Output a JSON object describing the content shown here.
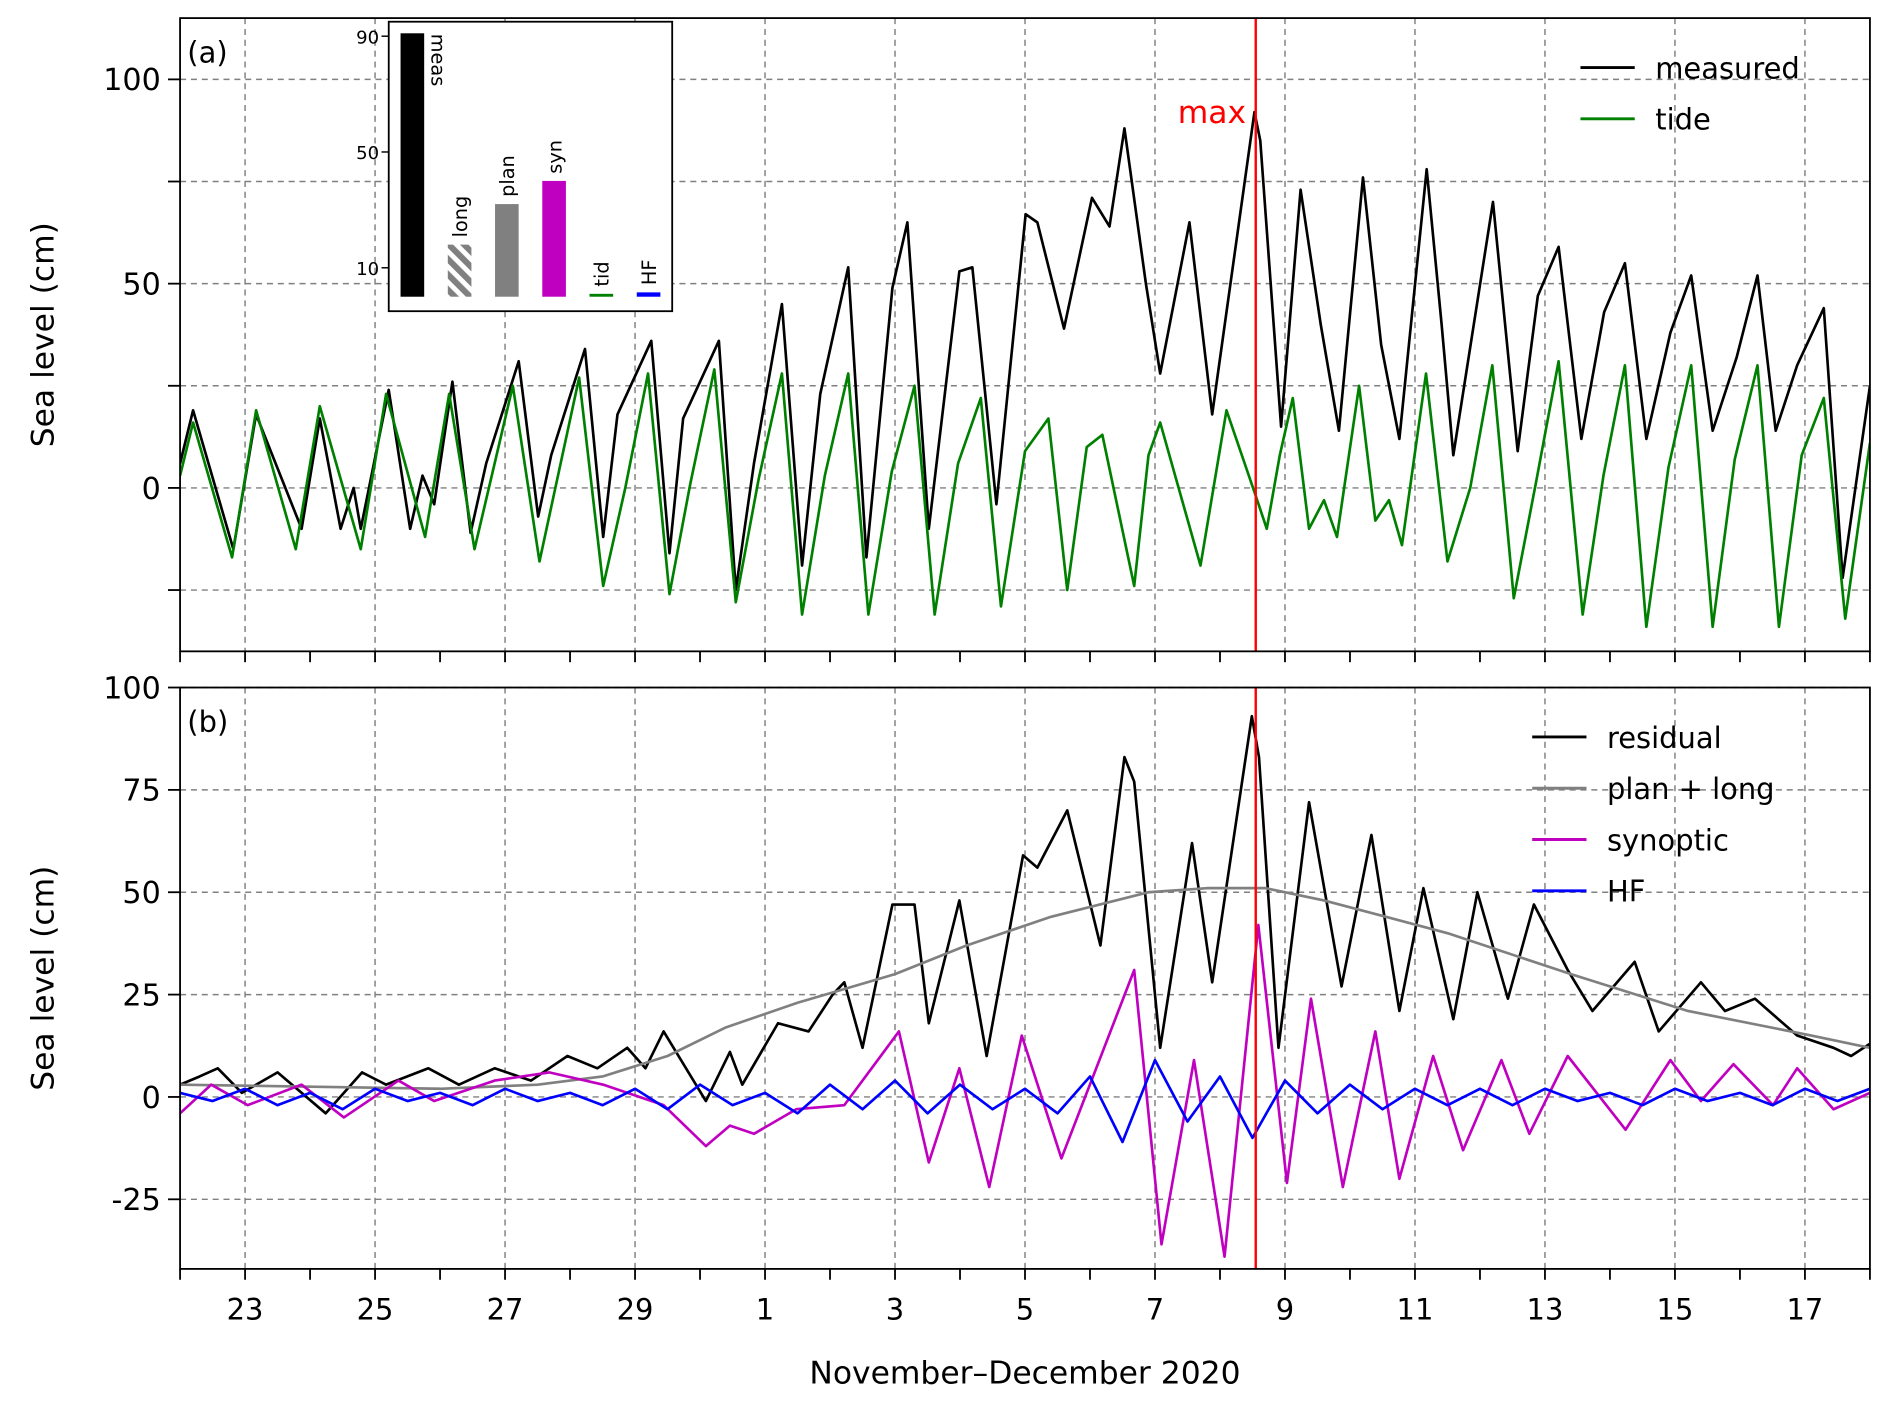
{
  "chart_data": [
    {
      "type": "line",
      "label": "(a)",
      "ylabel": "Sea level (cm)",
      "xlim": [
        0,
        26
      ],
      "xticks": [
        1,
        3,
        5,
        7,
        9,
        11,
        13,
        15,
        17,
        19,
        21,
        23,
        25
      ],
      "xminorticks": [
        0,
        2,
        4,
        6,
        8,
        10,
        12,
        14,
        16,
        18,
        20,
        22,
        24,
        26
      ],
      "ylim": [
        -40,
        115
      ],
      "yticks": [
        0,
        50,
        100
      ],
      "yminorticks": [
        -25,
        25,
        75
      ],
      "grid": true,
      "legend": "upper right",
      "vline_x": 16.55,
      "vline_color": "red",
      "annotation": "max",
      "series": [
        {
          "name": "measured",
          "color": "#000000",
          "x": [
            0.0,
            0.2,
            0.82,
            1.17,
            1.87,
            2.15,
            2.47,
            2.67,
            2.78,
            3.21,
            3.54,
            3.73,
            3.91,
            4.19,
            4.47,
            4.71,
            5.21,
            5.51,
            5.71,
            6.23,
            6.51,
            6.73,
            7.25,
            7.53,
            7.74,
            8.29,
            8.55,
            8.83,
            9.26,
            9.57,
            9.85,
            10.28,
            10.56,
            10.96,
            11.19,
            11.52,
            11.99,
            12.19,
            12.56,
            13.01,
            13.19,
            13.6,
            14.03,
            14.3,
            14.53,
            14.86,
            15.08,
            15.53,
            15.88,
            16.53,
            16.62,
            16.94,
            17.24,
            17.55,
            17.83,
            18.2,
            18.48,
            18.76,
            19.18,
            19.41,
            19.59,
            20.2,
            20.58,
            20.89,
            21.21,
            21.56,
            21.91,
            22.23,
            22.56,
            22.93,
            23.25,
            23.58,
            23.95,
            24.27,
            24.55,
            24.88,
            25.29,
            25.58,
            26.0
          ],
          "values": [
            6,
            19,
            -15,
            18,
            -10,
            17,
            -10,
            0,
            -10,
            24,
            -10,
            3,
            -4,
            26,
            -11,
            6,
            31,
            -7,
            8,
            34,
            -12,
            18,
            36,
            -16,
            17,
            36,
            -25,
            6,
            45,
            -19,
            23,
            54,
            -17,
            49,
            65,
            -10,
            53,
            54,
            -4,
            67,
            65,
            39,
            71,
            64,
            88,
            50,
            28,
            65,
            18,
            92,
            85,
            15,
            73,
            40,
            14,
            76,
            35,
            12,
            78,
            40,
            8,
            70,
            9,
            47,
            59,
            12,
            43,
            55,
            12,
            38,
            52,
            14,
            32,
            52,
            14,
            30,
            44,
            -22,
            25
          ]
        },
        {
          "name": "tide",
          "color": "#008000",
          "x": [
            0.0,
            0.2,
            0.8,
            1.17,
            1.78,
            2.15,
            2.78,
            3.17,
            3.77,
            4.14,
            4.53,
            5.12,
            5.53,
            6.14,
            6.51,
            6.85,
            7.2,
            7.53,
            7.85,
            8.22,
            8.55,
            8.9,
            9.26,
            9.57,
            9.92,
            10.28,
            10.59,
            10.95,
            11.3,
            11.61,
            11.97,
            12.32,
            12.63,
            13.0,
            13.36,
            13.65,
            13.95,
            14.19,
            14.68,
            14.9,
            15.08,
            15.7,
            16.1,
            16.53,
            16.72,
            16.92,
            17.12,
            17.37,
            17.6,
            17.8,
            18.14,
            18.39,
            18.6,
            18.8,
            19.17,
            19.5,
            19.85,
            20.19,
            20.52,
            20.87,
            21.21,
            21.58,
            21.9,
            22.23,
            22.56,
            22.9,
            23.25,
            23.58,
            23.92,
            24.27,
            24.6,
            24.95,
            25.29,
            25.62,
            26.0
          ],
          "values": [
            3,
            16,
            -17,
            19,
            -15,
            20,
            -15,
            23,
            -12,
            23,
            -15,
            25,
            -18,
            27,
            -24,
            0,
            28,
            -26,
            1,
            29,
            -28,
            2,
            28,
            -31,
            3,
            28,
            -31,
            4,
            25,
            -31,
            6,
            22,
            -29,
            9,
            17,
            -25,
            10,
            13,
            -24,
            8,
            16,
            -19,
            19,
            -1,
            -10,
            8,
            22,
            -10,
            -3,
            -12,
            25,
            -8,
            -3,
            -14,
            28,
            -18,
            0,
            30,
            -27,
            2,
            31,
            -31,
            3,
            30,
            -34,
            5,
            30,
            -34,
            7,
            30,
            -34,
            8,
            22,
            -32,
            11
          ]
        }
      ]
    },
    {
      "type": "bar",
      "categories": [
        "meas",
        "long",
        "plan",
        "syn",
        "tid",
        "HF"
      ],
      "values": [
        91,
        18,
        32,
        40,
        1,
        1.5
      ],
      "colors": [
        "#000000",
        "#808080",
        "#808080",
        "#c000c0",
        "#008000",
        "#0000ff"
      ],
      "hatched": [
        false,
        true,
        false,
        false,
        false,
        false
      ],
      "ylim": [
        -5,
        95
      ],
      "yticks": [
        10,
        50,
        90
      ]
    },
    {
      "type": "line",
      "label": "(b)",
      "ylabel": "Sea level (cm)",
      "xlabel": "November–December 2020",
      "xlim": [
        0,
        26
      ],
      "xticks": [
        {
          "value": 1,
          "label": "23"
        },
        {
          "value": 3,
          "label": "25"
        },
        {
          "value": 5,
          "label": "27"
        },
        {
          "value": 7,
          "label": "29"
        },
        {
          "value": 9,
          "label": "1"
        },
        {
          "value": 11,
          "label": "3"
        },
        {
          "value": 13,
          "label": "5"
        },
        {
          "value": 15,
          "label": "7"
        },
        {
          "value": 17,
          "label": "9"
        },
        {
          "value": 19,
          "label": "11"
        },
        {
          "value": 21,
          "label": "13"
        },
        {
          "value": 23,
          "label": "15"
        },
        {
          "value": 25,
          "label": "17"
        }
      ],
      "xminorticks": [
        0,
        2,
        4,
        6,
        8,
        10,
        12,
        14,
        16,
        18,
        20,
        22,
        24,
        26
      ],
      "ylim": [
        -42,
        100
      ],
      "yticks": [
        -25,
        0,
        25,
        50,
        75,
        100
      ],
      "grid": true,
      "legend": "upper right",
      "vline_x": 16.55,
      "vline_color": "red",
      "series": [
        {
          "name": "residual",
          "color": "#000000",
          "x": [
            0.0,
            0.3,
            0.58,
            0.95,
            1.5,
            2.24,
            2.8,
            3.17,
            3.82,
            4.29,
            4.84,
            5.4,
            5.96,
            6.42,
            6.88,
            7.16,
            7.44,
            8.09,
            8.46,
            8.65,
            9.2,
            9.67,
            10.04,
            10.22,
            10.5,
            10.96,
            11.3,
            11.52,
            11.99,
            12.41,
            12.97,
            13.19,
            13.65,
            14.16,
            14.53,
            14.68,
            15.08,
            15.57,
            15.88,
            16.49,
            16.6,
            16.9,
            17.37,
            17.87,
            18.33,
            18.76,
            19.13,
            19.59,
            19.96,
            20.43,
            20.83,
            21.35,
            21.73,
            22.38,
            22.75,
            23.4,
            23.77,
            24.23,
            24.88,
            25.44,
            25.71,
            26.0
          ],
          "values": [
            3,
            5,
            7,
            1,
            6,
            -4,
            6,
            3,
            7,
            3,
            7,
            4,
            10,
            7,
            12,
            7,
            16,
            -1,
            11,
            3,
            18,
            16,
            25,
            28,
            12,
            47,
            47,
            18,
            48,
            10,
            59,
            56,
            70,
            37,
            83,
            77,
            12,
            62,
            28,
            93,
            83,
            12,
            72,
            27,
            64,
            21,
            51,
            19,
            50,
            24,
            47,
            31,
            21,
            33,
            16,
            28,
            21,
            24,
            15,
            12,
            10,
            13
          ]
        },
        {
          "name": "plan + long",
          "color": "#808080",
          "x": [
            0,
            2,
            4,
            5.5,
            6.5,
            7.5,
            8.4,
            9.5,
            11,
            12.1,
            13.4,
            14.9,
            15.8,
            16.7,
            17.6,
            19.5,
            21.4,
            23.2,
            25.1,
            26
          ],
          "values": [
            3,
            2.5,
            2,
            3,
            5,
            10,
            17,
            23,
            30,
            37,
            44,
            50,
            51,
            51,
            48,
            40,
            30,
            21,
            15,
            12
          ]
        },
        {
          "name": "synoptic",
          "color": "#c000c0",
          "x": [
            0.0,
            0.48,
            1.04,
            1.87,
            2.52,
            3.36,
            3.91,
            4.84,
            5.68,
            6.51,
            7.44,
            8.09,
            8.46,
            8.83,
            9.48,
            10.22,
            11.06,
            11.52,
            11.99,
            12.45,
            12.95,
            13.56,
            14.68,
            15.1,
            15.6,
            16.07,
            16.59,
            17.03,
            17.4,
            17.89,
            18.39,
            18.76,
            19.28,
            19.74,
            20.33,
            20.76,
            21.35,
            22.24,
            22.93,
            23.4,
            23.9,
            24.51,
            24.88,
            25.44,
            26.0
          ],
          "values": [
            -4,
            3,
            -2,
            3,
            -5,
            4,
            -1,
            4,
            6,
            3,
            -2,
            -12,
            -7,
            -9,
            -3,
            -2,
            16,
            -16,
            7,
            -22,
            15,
            -15,
            31,
            -36,
            9,
            -39,
            42,
            -21,
            24,
            -22,
            16,
            -20,
            10,
            -13,
            9,
            -9,
            10,
            -8,
            9,
            -1,
            8,
            -2,
            7,
            -3,
            1
          ]
        },
        {
          "name": "HF",
          "color": "#0000ff",
          "x": [
            0,
            0.5,
            1,
            1.5,
            2,
            2.5,
            3,
            3.5,
            4,
            4.5,
            5,
            5.5,
            6,
            6.5,
            7,
            7.5,
            8,
            8.5,
            9,
            9.5,
            10,
            10.5,
            11,
            11.5,
            12,
            12.5,
            13,
            13.5,
            14,
            14.5,
            15,
            15.5,
            16,
            16.5,
            17,
            17.5,
            18,
            18.5,
            19,
            19.5,
            20,
            20.5,
            21,
            21.5,
            22,
            22.5,
            23,
            23.5,
            24,
            24.5,
            25,
            25.5,
            26
          ],
          "values": [
            1,
            -1,
            2,
            -2,
            1,
            -3,
            2,
            -1,
            1,
            -2,
            2,
            -1,
            1,
            -2,
            2,
            -3,
            3,
            -2,
            1,
            -4,
            3,
            -3,
            4,
            -4,
            3,
            -3,
            2,
            -4,
            5,
            -11,
            9,
            -6,
            5,
            -10,
            4,
            -4,
            3,
            -3,
            2,
            -2,
            2,
            -2,
            2,
            -1,
            1,
            -2,
            2,
            -1,
            1,
            -2,
            2,
            -1,
            2
          ]
        }
      ]
    }
  ]
}
